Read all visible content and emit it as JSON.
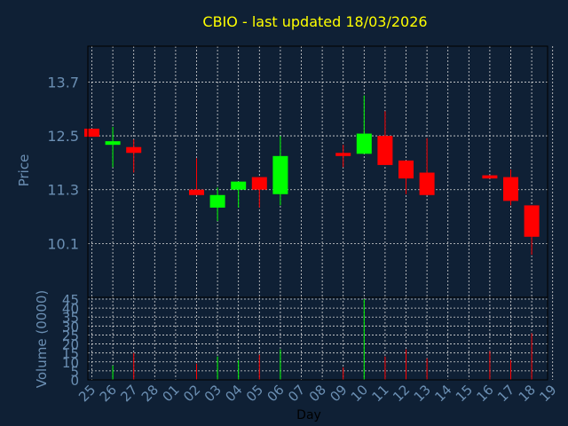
{
  "colors": {
    "background": "#0f2035",
    "title": "#ffff00",
    "axis_text": "#6b8fb3",
    "grid": "#d8d8d8",
    "frame": "#000000",
    "up": "#00ff00",
    "down": "#ff0000"
  },
  "chart_data": {
    "type": "candlestick",
    "title": "CBIO - last updated 18/03/2026",
    "xlabel": "Day",
    "price_panel": {
      "ylabel": "Price",
      "ylim": [
        8.9,
        14.5
      ],
      "yticks": [
        "13.7",
        "12.5",
        "11.3",
        "10.1"
      ],
      "ytick_values": [
        13.7,
        12.5,
        11.3,
        10.1
      ],
      "grid": true
    },
    "volume_panel": {
      "ylabel": "Volume (0000)",
      "ylim": [
        0,
        45
      ],
      "yticks": [
        "45",
        "40",
        "35",
        "30",
        "25",
        "20",
        "15",
        "10",
        "5",
        "0"
      ],
      "ytick_values": [
        45,
        40,
        35,
        30,
        25,
        20,
        15,
        10,
        5,
        0
      ],
      "grid": true
    },
    "x_ticks": [
      "25",
      "26",
      "27",
      "28",
      "01",
      "02",
      "03",
      "04",
      "05",
      "06",
      "07",
      "08",
      "09",
      "10",
      "11",
      "12",
      "13",
      "14",
      "15",
      "16",
      "17",
      "18",
      "19"
    ],
    "candles": [
      {
        "day": "25",
        "open": 12.66,
        "close": 12.48,
        "high": 12.66,
        "low": 12.48,
        "volume": 0
      },
      {
        "day": "26",
        "open": 12.3,
        "close": 12.38,
        "high": 12.7,
        "low": 11.8,
        "volume": 8
      },
      {
        "day": "27",
        "open": 12.25,
        "close": 12.12,
        "high": 12.42,
        "low": 11.68,
        "volume": 15
      },
      {
        "day": "02",
        "open": 11.3,
        "close": 11.18,
        "high": 12.0,
        "low": 11.18,
        "volume": 9
      },
      {
        "day": "03",
        "open": 10.9,
        "close": 11.18,
        "high": 11.35,
        "low": 10.6,
        "volume": 13
      },
      {
        "day": "04",
        "open": 11.3,
        "close": 11.48,
        "high": 11.48,
        "low": 10.9,
        "volume": 11
      },
      {
        "day": "05",
        "open": 11.58,
        "close": 11.3,
        "high": 11.58,
        "low": 10.9,
        "volume": 14
      },
      {
        "day": "06",
        "open": 11.2,
        "close": 12.05,
        "high": 12.5,
        "low": 10.95,
        "volume": 17
      },
      {
        "day": "09",
        "open": 12.12,
        "close": 12.05,
        "high": 12.3,
        "low": 11.8,
        "volume": 7
      },
      {
        "day": "10",
        "open": 12.1,
        "close": 12.55,
        "high": 13.4,
        "low": 12.1,
        "volume": 45
      },
      {
        "day": "11",
        "open": 12.5,
        "close": 11.85,
        "high": 13.05,
        "low": 11.85,
        "volume": 13
      },
      {
        "day": "12",
        "open": 11.95,
        "close": 11.55,
        "high": 11.95,
        "low": 11.2,
        "volume": 17
      },
      {
        "day": "13",
        "open": 11.68,
        "close": 11.18,
        "high": 12.45,
        "low": 11.18,
        "volume": 12
      },
      {
        "day": "16",
        "open": 11.62,
        "close": 11.55,
        "high": 11.62,
        "low": 11.55,
        "volume": 16
      },
      {
        "day": "17",
        "open": 11.58,
        "close": 11.05,
        "high": 11.75,
        "low": 10.95,
        "volume": 11
      },
      {
        "day": "18",
        "open": 10.95,
        "close": 10.25,
        "high": 10.95,
        "low": 9.85,
        "volume": 26
      }
    ]
  }
}
